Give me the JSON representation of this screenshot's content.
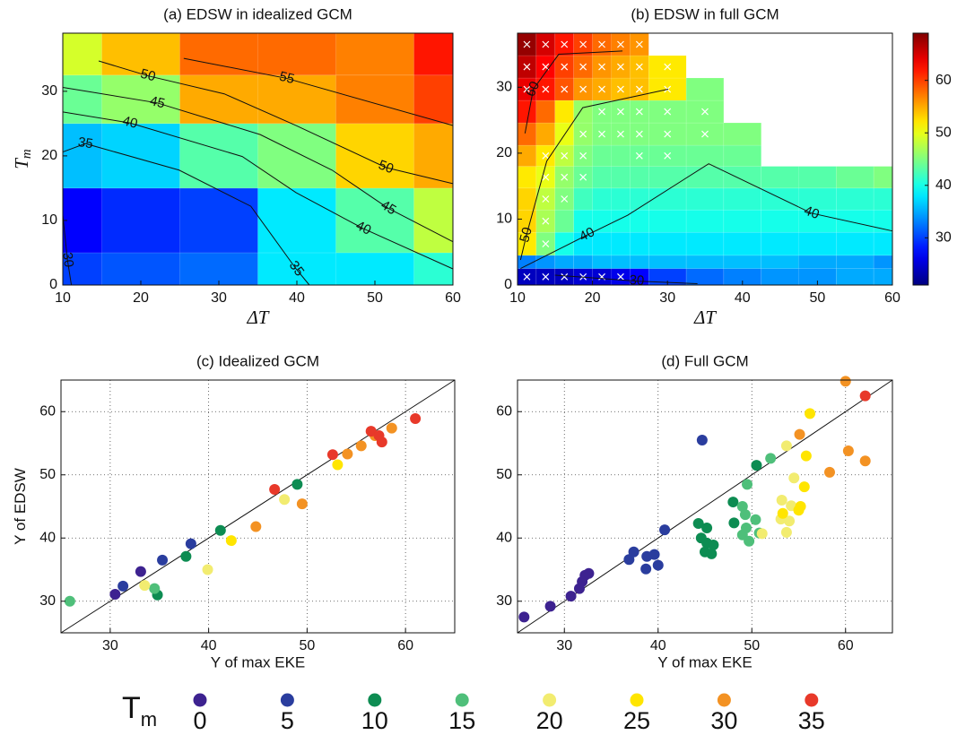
{
  "chart_data": [
    {
      "type": "heatmap",
      "title": "(a) EDSW in idealized GCM",
      "xlabel": "ΔT",
      "ylabel": "T",
      "ylabel_subscript": "m",
      "xlim": [
        10,
        60
      ],
      "ylim": [
        0,
        39
      ],
      "xticks": [
        10,
        20,
        30,
        40,
        50,
        60
      ],
      "yticks": [
        0,
        10,
        20,
        30
      ],
      "colormap": "jet",
      "clim": [
        21,
        69
      ],
      "x_edges": [
        10,
        15,
        25,
        35,
        45,
        55,
        60
      ],
      "y_edges": [
        0,
        5,
        15,
        25,
        32.5,
        39
      ],
      "z": [
        [
          30,
          31,
          32,
          38,
          38,
          41
        ],
        [
          27,
          29,
          30,
          38,
          43,
          48
        ],
        [
          36,
          37,
          43,
          45,
          53,
          55
        ],
        [
          44,
          46,
          55,
          55,
          57,
          60
        ],
        [
          49,
          54,
          58,
          58,
          57,
          62
        ]
      ],
      "contours": [
        {
          "level": 55,
          "x": [
            25.5,
            38.7,
            60
          ],
          "y": [
            35.1,
            32,
            24.7
          ]
        },
        {
          "level": 50,
          "x": [
            14.6,
            20.9,
            30.7,
            39.9,
            51.4,
            60
          ],
          "y": [
            34.7,
            32.4,
            29.6,
            24.7,
            18.2,
            15.7
          ]
        },
        {
          "level": 45,
          "x": [
            10,
            22.1,
            35.3,
            44.5,
            51.7,
            60
          ],
          "y": [
            30.6,
            28.2,
            23.3,
            17.8,
            11.9,
            6.7
          ]
        },
        {
          "level": 40,
          "x": [
            10,
            18.6,
            33,
            39.9,
            48.5,
            60
          ],
          "y": [
            26.8,
            25.1,
            19.9,
            14.3,
            8.75,
            2.5
          ]
        },
        {
          "level": 35,
          "x": [
            10,
            12.9,
            24.9,
            34.1,
            39.9,
            41.6
          ],
          "y": [
            20.6,
            21.9,
            17.8,
            12.2,
            2.5,
            0
          ]
        },
        {
          "level": 30,
          "x": [
            10,
            10.6,
            11.1
          ],
          "y": [
            10.8,
            3.9,
            0
          ]
        }
      ]
    },
    {
      "type": "heatmap",
      "title": "(b) EDSW in full GCM",
      "xlabel": "ΔT",
      "xlim": [
        10,
        60
      ],
      "ylim": [
        0,
        38.2
      ],
      "xticks": [
        10,
        20,
        30,
        40,
        50,
        60
      ],
      "yticks": [
        0,
        10,
        20,
        30
      ],
      "colormap": "jet",
      "clim": [
        21,
        69
      ],
      "colorbar": {
        "ticks": [
          30,
          40,
          50,
          60
        ]
      },
      "x_edges": [
        10,
        12.5,
        15,
        17.5,
        20,
        22.5,
        25,
        27.5,
        32.5,
        37.5,
        42.5,
        47.5,
        52.5,
        57.5,
        60
      ],
      "y_edges": [
        0,
        2.5,
        4.5,
        8,
        11.4,
        14.7,
        18,
        21.2,
        24.6,
        28,
        31.4,
        34.8,
        38.2
      ],
      "z": [
        [
          24,
          24,
          24,
          25,
          25,
          26,
          27,
          30,
          32,
          33,
          34,
          34,
          35,
          35
        ],
        [
          33,
          34,
          35,
          35,
          36,
          36,
          36,
          36,
          36,
          36,
          36,
          35,
          35,
          34
        ],
        [
          52,
          45,
          40,
          38,
          38,
          38,
          38,
          38,
          38,
          38,
          38,
          38,
          38,
          38
        ],
        [
          53,
          47,
          44,
          40,
          40,
          40,
          40,
          40,
          40,
          40,
          40,
          40,
          40,
          40
        ],
        [
          53,
          48,
          45,
          42,
          41,
          41,
          41,
          41,
          41,
          41,
          41,
          41,
          41,
          41
        ],
        [
          52,
          50,
          46,
          44,
          43,
          43,
          43,
          43,
          43,
          43,
          43,
          43,
          44,
          45
        ],
        [
          55,
          52,
          48,
          45,
          44,
          44,
          44,
          44,
          44,
          44,
          null,
          null,
          null,
          null
        ],
        [
          58,
          55,
          50,
          46,
          45,
          45,
          45,
          45,
          45,
          45,
          null,
          null,
          null,
          null
        ],
        [
          62,
          58,
          52,
          46,
          45,
          45,
          45,
          45,
          45,
          null,
          null,
          null,
          null,
          null
        ],
        [
          64,
          62,
          59,
          56,
          55,
          54,
          54,
          52,
          45,
          null,
          null,
          null,
          null,
          null
        ],
        [
          66,
          63,
          60,
          58,
          56,
          55,
          54,
          52,
          null,
          null,
          null,
          null,
          null,
          null
        ],
        [
          68,
          65,
          62,
          60,
          58,
          57,
          56,
          null,
          null,
          null,
          null,
          null,
          null,
          null
        ]
      ],
      "crosses": [
        [
          0,
          1,
          2,
          3,
          4,
          5
        ],
        [],
        [
          1
        ],
        [
          1
        ],
        [
          1,
          2
        ],
        [
          1,
          2,
          3
        ],
        [
          1,
          2,
          3,
          6,
          7
        ],
        [
          3,
          4,
          5,
          6,
          7,
          8
        ],
        [
          4,
          5,
          6,
          7,
          8
        ],
        [
          0,
          1,
          2,
          3,
          4,
          5,
          6,
          7
        ],
        [
          0,
          1,
          2,
          3,
          4,
          5,
          6,
          7
        ],
        [
          0,
          1,
          2,
          3,
          4,
          5,
          6
        ]
      ],
      "contours": [
        {
          "level": 60,
          "x": [
            11,
            12.1,
            15.5,
            24
          ],
          "y": [
            23,
            29.7,
            35,
            35.5
          ]
        },
        {
          "level": 50,
          "x": [
            10.4,
            11.2,
            13.9,
            18.7,
            30.1
          ],
          "y": [
            3.8,
            7.6,
            18.8,
            26.9,
            29.7
          ]
        },
        {
          "level": 40,
          "x": [
            10.4,
            19.3,
            24.7,
            35.5,
            49.2,
            60
          ],
          "y": [
            2.5,
            7.6,
            10.6,
            18.4,
            10.9,
            8.2
          ]
        },
        {
          "level": 30,
          "x": [
            15,
            25.9,
            34
          ],
          "y": [
            1.5,
            0.6,
            0.2
          ]
        }
      ]
    },
    {
      "type": "scatter",
      "title": "(c) Idealized GCM",
      "xlabel": "Y of max EKE",
      "ylabel": "Y of EDSW",
      "xlim": [
        25,
        65
      ],
      "ylim": [
        25,
        65
      ],
      "xticks": [
        30,
        40,
        50,
        60
      ],
      "yticks": [
        30,
        40,
        50,
        60
      ],
      "grid": true,
      "one_to_one_line": true,
      "legend": "bottom",
      "legend_title": "T",
      "legend_title_subscript": "m",
      "series": [
        {
          "name": "0",
          "color": "#3d2290",
          "x": [
            30.5,
            33.1
          ],
          "y": [
            31.1,
            34.7
          ]
        },
        {
          "name": "5",
          "color": "#2a3d9e",
          "x": [
            31.3,
            35.3,
            38.2
          ],
          "y": [
            32.4,
            36.5,
            39.1
          ]
        },
        {
          "name": "10",
          "color": "#0d8c52",
          "x": [
            34.8,
            37.7,
            41.2,
            49
          ],
          "y": [
            31,
            37.1,
            41.2,
            48.5
          ]
        },
        {
          "name": "15",
          "color": "#4fbf7a",
          "x": [
            25.9,
            34.5
          ],
          "y": [
            30,
            32
          ]
        },
        {
          "name": "20",
          "color": "#f2ec70",
          "x": [
            33.5,
            39.9,
            47.7
          ],
          "y": [
            32.5,
            35,
            46.1
          ]
        },
        {
          "name": "25",
          "color": "#ffe500",
          "x": [
            42.3,
            53.1
          ],
          "y": [
            39.6,
            51.6
          ]
        },
        {
          "name": "30",
          "color": "#f39223",
          "x": [
            44.8,
            49.5,
            54.1,
            55.5,
            56.9,
            58.6
          ],
          "y": [
            41.8,
            45.4,
            53.3,
            54.6,
            56.2,
            57.4
          ]
        },
        {
          "name": "35",
          "color": "#e8392a",
          "x": [
            46.7,
            52.6,
            56.5,
            57.3,
            57.6,
            61
          ],
          "y": [
            47.7,
            53.2,
            56.9,
            56.2,
            55.2,
            58.9
          ]
        }
      ]
    },
    {
      "type": "scatter",
      "title": "(d) Full GCM",
      "xlabel": "Y of max EKE",
      "xlim": [
        25,
        65
      ],
      "ylim": [
        25,
        65
      ],
      "xticks": [
        30,
        40,
        50,
        60
      ],
      "yticks": [
        30,
        40,
        50,
        60
      ],
      "grid": true,
      "one_to_one_line": true,
      "series": [
        {
          "name": "0",
          "color": "#3d2290",
          "x": [
            25.7,
            28.5,
            30.7,
            31.6,
            31.9,
            32.2,
            32.6
          ],
          "y": [
            27.5,
            29.2,
            30.8,
            32,
            33.1,
            34.1,
            34.4
          ]
        },
        {
          "name": "5",
          "color": "#2a3d9e",
          "x": [
            36.9,
            37.4,
            38.8,
            38.7,
            39.6,
            40,
            40.7,
            44.7
          ],
          "y": [
            36.6,
            37.8,
            37.1,
            35.1,
            37.4,
            35.7,
            41.3,
            55.5
          ]
        },
        {
          "name": "10",
          "color": "#0d8c52",
          "x": [
            44.3,
            44.6,
            45.2,
            45.2,
            45,
            45.7,
            45.9,
            48,
            48.1,
            50.5
          ],
          "y": [
            42.3,
            40,
            41.6,
            39.2,
            37.8,
            37.5,
            38.9,
            45.7,
            42.4,
            51.5
          ]
        },
        {
          "name": "15",
          "color": "#4fbf7a",
          "x": [
            49,
            49,
            49.5,
            49.3,
            49.4,
            49.7,
            50.4,
            52,
            50.8
          ],
          "y": [
            40.5,
            45,
            48.5,
            43.7,
            41.6,
            39.5,
            42.9,
            52.6,
            40.8
          ]
        },
        {
          "name": "20",
          "color": "#f2ec70",
          "x": [
            51.1,
            53.1,
            53.2,
            53.7,
            54,
            54.2,
            54.5,
            53.7
          ],
          "y": [
            40.7,
            43,
            46,
            40.9,
            42.7,
            45.1,
            49.5,
            54.6
          ]
        },
        {
          "name": "25",
          "color": "#ffe500",
          "x": [
            53.3,
            55,
            55.2,
            55.6,
            55.8,
            56.2
          ],
          "y": [
            43.9,
            44.4,
            45,
            48.1,
            53,
            59.7
          ]
        },
        {
          "name": "30",
          "color": "#f39223",
          "x": [
            55.1,
            58.3,
            60,
            60.3,
            62.1
          ],
          "y": [
            56.4,
            50.4,
            64.8,
            53.8,
            52.2
          ]
        },
        {
          "name": "35",
          "color": "#e8392a",
          "x": [
            62.1
          ],
          "y": [
            62.5
          ]
        }
      ]
    }
  ]
}
